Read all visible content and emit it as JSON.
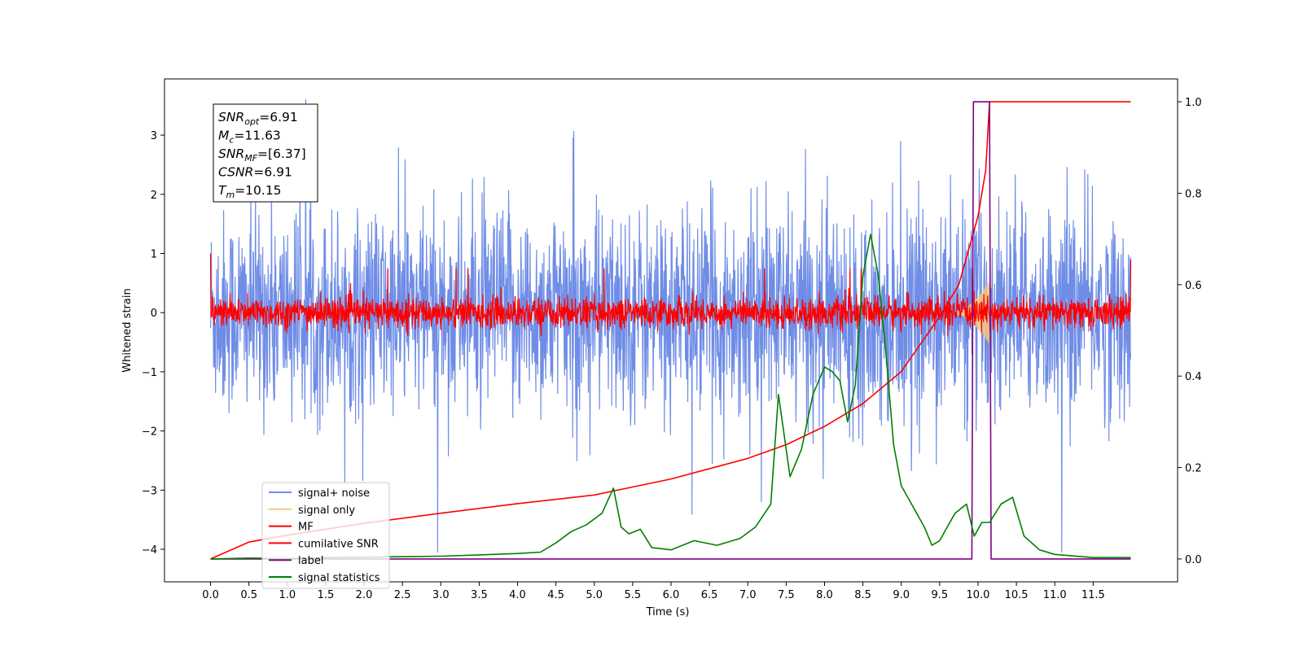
{
  "chart_data": {
    "type": "line",
    "xlabel": "Time (s)",
    "ylabel_left": "Whitened strain",
    "ylabel_right": "",
    "xlim": [
      -0.6,
      12.6
    ],
    "ylim_left": [
      -4.55,
      3.95
    ],
    "ylim_right": [
      -0.05,
      1.05
    ],
    "x_ticks": [
      0.0,
      0.5,
      1.0,
      1.5,
      2.0,
      2.5,
      3.0,
      3.5,
      4.0,
      4.5,
      5.0,
      5.5,
      6.0,
      6.5,
      7.0,
      7.5,
      8.0,
      8.5,
      9.0,
      9.5,
      10.0,
      10.5,
      11.0,
      11.5
    ],
    "x_tick_labels": [
      "0.0",
      "0.5",
      "1.0",
      "1.5",
      "2.0",
      "2.5",
      "3.0",
      "3.5",
      "4.0",
      "4.5",
      "5.0",
      "5.5",
      "6.0",
      "6.5",
      "7.0",
      "7.5",
      "8.0",
      "8.5",
      "9.0",
      "9.5",
      "10.0",
      "10.5",
      "11.0",
      "11.5"
    ],
    "y_left_ticks": [
      3,
      2,
      1,
      0,
      -1,
      -2,
      -3,
      -4
    ],
    "y_left_tick_labels": [
      "3",
      "2",
      "1",
      "0",
      "−1",
      "−2",
      "−3",
      "−4"
    ],
    "y_right_ticks": [
      1.0,
      0.8,
      0.6,
      0.4,
      0.2,
      0.0
    ],
    "y_right_tick_labels": [
      "1.0",
      "0.8",
      "0.6",
      "0.4",
      "0.2",
      "0.0"
    ],
    "grid": false,
    "legend_position": "lower-left",
    "annotation": {
      "lines": [
        {
          "sym": "SNR",
          "sub": "opt",
          "val": "=6.91"
        },
        {
          "sym": "M",
          "sub": "c",
          "val": "=11.63"
        },
        {
          "sym": "SNR",
          "sub": "MF",
          "val": "=[6.37]"
        },
        {
          "sym": "CSNR",
          "sub": "",
          "val": "=6.91"
        },
        {
          "sym": "T",
          "sub": "m",
          "val": "=10.15"
        }
      ]
    },
    "series": [
      {
        "name": "signal+ noise",
        "color": "#6f8de6",
        "axis": "left",
        "kind": "noise",
        "x_range": [
          0.0,
          11.99
        ],
        "amplitude_std": 0.85
      },
      {
        "name": "signal only",
        "color": "#f5c87a",
        "axis": "left",
        "kind": "chirp",
        "x_range": [
          9.6,
          10.15
        ],
        "peak_amplitude": 0.55
      },
      {
        "name": "MF",
        "color": "#ff0000",
        "axis": "left",
        "kind": "noise",
        "x_range": [
          0.0,
          11.99
        ],
        "amplitude_std": 0.13
      },
      {
        "name": "cumilative SNR",
        "color": "#ff0000",
        "axis": "right",
        "x": [
          0.0,
          0.5,
          1.0,
          2.0,
          3.0,
          4.0,
          5.0,
          6.0,
          7.0,
          7.5,
          8.0,
          8.5,
          9.0,
          9.5,
          9.75,
          10.0,
          10.1,
          10.15,
          11.99
        ],
        "y": [
          0.0,
          0.037,
          0.052,
          0.078,
          0.1,
          0.121,
          0.14,
          0.175,
          0.22,
          0.25,
          0.29,
          0.34,
          0.41,
          0.53,
          0.6,
          0.75,
          0.85,
          1.0,
          1.0
        ]
      },
      {
        "name": "label",
        "color": "#800080",
        "axis": "right",
        "x": [
          0.0,
          9.92,
          9.94,
          10.15,
          10.17,
          11.99
        ],
        "y": [
          0.0,
          0.0,
          1.0,
          1.0,
          0.0,
          0.0
        ]
      },
      {
        "name": "signal statistics",
        "color": "#008000",
        "axis": "right",
        "x": [
          0.0,
          0.5,
          1.0,
          1.5,
          2.0,
          2.5,
          3.0,
          3.5,
          4.0,
          4.3,
          4.5,
          4.7,
          4.9,
          5.1,
          5.25,
          5.35,
          5.45,
          5.6,
          5.75,
          6.0,
          6.3,
          6.6,
          6.9,
          7.1,
          7.3,
          7.4,
          7.55,
          7.7,
          7.85,
          8.0,
          8.1,
          8.2,
          8.3,
          8.4,
          8.5,
          8.6,
          8.7,
          8.8,
          8.9,
          9.0,
          9.1,
          9.2,
          9.3,
          9.4,
          9.5,
          9.7,
          9.85,
          9.95,
          10.05,
          10.15,
          10.3,
          10.45,
          10.6,
          10.8,
          11.0,
          11.5,
          11.99
        ],
        "y": [
          0.0,
          0.002,
          0.001,
          0.003,
          0.004,
          0.005,
          0.006,
          0.009,
          0.012,
          0.015,
          0.035,
          0.06,
          0.075,
          0.1,
          0.155,
          0.07,
          0.055,
          0.065,
          0.025,
          0.02,
          0.04,
          0.03,
          0.045,
          0.07,
          0.12,
          0.36,
          0.18,
          0.24,
          0.36,
          0.42,
          0.41,
          0.39,
          0.3,
          0.38,
          0.62,
          0.71,
          0.62,
          0.45,
          0.25,
          0.16,
          0.13,
          0.1,
          0.07,
          0.03,
          0.04,
          0.1,
          0.12,
          0.05,
          0.08,
          0.08,
          0.12,
          0.135,
          0.05,
          0.02,
          0.01,
          0.003,
          0.003
        ]
      }
    ]
  }
}
